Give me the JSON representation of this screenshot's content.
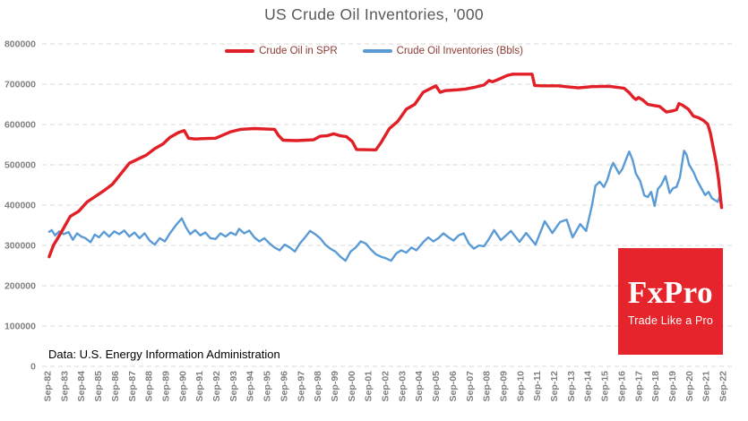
{
  "title": "US Crude Oil Inventories, '000",
  "source_note": "Data: U.S. Energy Information Administration",
  "logo": {
    "name": "FxPro",
    "tagline": "Trade Like a Pro",
    "bg_color": "#e6242c",
    "text_color": "#ffffff"
  },
  "legend": [
    {
      "label": "Crude Oil in SPR",
      "color": "#e11f26"
    },
    {
      "label": "Crude Oil Inventories (Bbls)",
      "color": "#5b9bd5"
    }
  ],
  "colors": {
    "grid": "#d9d9d9",
    "axis_label": "#7f7f7f",
    "title": "#595959",
    "legend_text": "#8e3a33",
    "spr_line": "#e11f26",
    "inventories_line": "#5b9bd5"
  },
  "chart_data": {
    "type": "line",
    "title": "US Crude Oil Inventories, '000",
    "xlabel": "",
    "ylabel": "",
    "grid": "horizontal-dashed",
    "legend_position": "top-center",
    "y_axis": {
      "range": [
        0,
        800000
      ],
      "tick_labels": [
        "0",
        "100000",
        "200000",
        "300000",
        "400000",
        "500000",
        "600000",
        "700000",
        "800000"
      ]
    },
    "x_axis": {
      "unit": "month-year, September of each year",
      "tick_labels": [
        "Sep-82",
        "Sep-83",
        "Sep-84",
        "Sep-85",
        "Sep-86",
        "Sep-87",
        "Sep-88",
        "Sep-89",
        "Sep-90",
        "Sep-91",
        "Sep-92",
        "Sep-93",
        "Sep-94",
        "Sep-95",
        "Sep-96",
        "Sep-97",
        "Sep-98",
        "Sep-99",
        "Sep-00",
        "Sep-01",
        "Sep-02",
        "Sep-03",
        "Sep-04",
        "Sep-05",
        "Sep-06",
        "Sep-07",
        "Sep-08",
        "Sep-09",
        "Sep-10",
        "Sep-11",
        "Sep-12",
        "Sep-13",
        "Sep-14",
        "Sep-15",
        "Sep-16",
        "Sep-17",
        "Sep-18",
        "Sep-19",
        "Sep-20",
        "Sep-21",
        "Sep-22"
      ],
      "first_tick_year": 1982.75,
      "last_tick_year": 2022.75
    },
    "series": [
      {
        "name": "Crude Oil Inventories (Bbls)",
        "color": "#5b9bd5",
        "points": [
          [
            1982.85,
            334000
          ],
          [
            1983.0,
            338000
          ],
          [
            1983.2,
            325000
          ],
          [
            1983.45,
            335000
          ],
          [
            1983.7,
            328000
          ],
          [
            1984.0,
            333000
          ],
          [
            1984.25,
            314000
          ],
          [
            1984.5,
            330000
          ],
          [
            1984.75,
            322000
          ],
          [
            1985.0,
            318000
          ],
          [
            1985.3,
            308000
          ],
          [
            1985.55,
            327000
          ],
          [
            1985.8,
            320000
          ],
          [
            1986.1,
            334000
          ],
          [
            1986.4,
            322000
          ],
          [
            1986.7,
            335000
          ],
          [
            1987.0,
            328000
          ],
          [
            1987.3,
            337000
          ],
          [
            1987.6,
            322000
          ],
          [
            1987.9,
            332000
          ],
          [
            1988.2,
            318000
          ],
          [
            1988.5,
            330000
          ],
          [
            1988.8,
            312000
          ],
          [
            1989.1,
            302000
          ],
          [
            1989.4,
            318000
          ],
          [
            1989.7,
            310000
          ],
          [
            1990.0,
            330000
          ],
          [
            1990.35,
            350000
          ],
          [
            1990.7,
            367000
          ],
          [
            1990.95,
            345000
          ],
          [
            1991.2,
            328000
          ],
          [
            1991.5,
            338000
          ],
          [
            1991.8,
            325000
          ],
          [
            1992.1,
            332000
          ],
          [
            1992.4,
            318000
          ],
          [
            1992.7,
            316000
          ],
          [
            1993.0,
            330000
          ],
          [
            1993.3,
            322000
          ],
          [
            1993.6,
            332000
          ],
          [
            1993.9,
            326000
          ],
          [
            1994.1,
            341000
          ],
          [
            1994.4,
            330000
          ],
          [
            1994.7,
            337000
          ],
          [
            1995.0,
            320000
          ],
          [
            1995.3,
            310000
          ],
          [
            1995.6,
            318000
          ],
          [
            1995.9,
            305000
          ],
          [
            1996.2,
            295000
          ],
          [
            1996.5,
            288000
          ],
          [
            1996.8,
            302000
          ],
          [
            1997.1,
            295000
          ],
          [
            1997.4,
            285000
          ],
          [
            1997.7,
            305000
          ],
          [
            1998.0,
            320000
          ],
          [
            1998.3,
            336000
          ],
          [
            1998.6,
            328000
          ],
          [
            1998.9,
            318000
          ],
          [
            1999.2,
            302000
          ],
          [
            1999.5,
            292000
          ],
          [
            1999.8,
            285000
          ],
          [
            2000.1,
            272000
          ],
          [
            2000.4,
            262000
          ],
          [
            2000.7,
            285000
          ],
          [
            2001.0,
            295000
          ],
          [
            2001.3,
            310000
          ],
          [
            2001.6,
            305000
          ],
          [
            2001.9,
            290000
          ],
          [
            2002.2,
            278000
          ],
          [
            2002.5,
            272000
          ],
          [
            2002.8,
            268000
          ],
          [
            2003.1,
            262000
          ],
          [
            2003.4,
            280000
          ],
          [
            2003.7,
            288000
          ],
          [
            2004.0,
            282000
          ],
          [
            2004.3,
            295000
          ],
          [
            2004.6,
            288000
          ],
          [
            2005.0,
            308000
          ],
          [
            2005.3,
            320000
          ],
          [
            2005.6,
            310000
          ],
          [
            2005.9,
            318000
          ],
          [
            2006.2,
            330000
          ],
          [
            2006.5,
            320000
          ],
          [
            2006.8,
            312000
          ],
          [
            2007.1,
            325000
          ],
          [
            2007.4,
            330000
          ],
          [
            2007.7,
            305000
          ],
          [
            2008.0,
            292000
          ],
          [
            2008.3,
            300000
          ],
          [
            2008.6,
            298000
          ],
          [
            2008.85,
            313000
          ],
          [
            2009.2,
            338000
          ],
          [
            2009.6,
            313000
          ],
          [
            2010.2,
            336000
          ],
          [
            2010.7,
            309000
          ],
          [
            2011.1,
            331000
          ],
          [
            2011.65,
            302000
          ],
          [
            2012.2,
            360000
          ],
          [
            2012.65,
            331000
          ],
          [
            2013.1,
            358000
          ],
          [
            2013.5,
            364000
          ],
          [
            2013.85,
            320000
          ],
          [
            2014.3,
            353000
          ],
          [
            2014.65,
            336000
          ],
          [
            2015.0,
            400000
          ],
          [
            2015.2,
            448000
          ],
          [
            2015.45,
            458000
          ],
          [
            2015.7,
            445000
          ],
          [
            2015.9,
            462000
          ],
          [
            2016.1,
            490000
          ],
          [
            2016.25,
            505000
          ],
          [
            2016.45,
            490000
          ],
          [
            2016.6,
            478000
          ],
          [
            2016.8,
            490000
          ],
          [
            2017.0,
            512000
          ],
          [
            2017.2,
            533000
          ],
          [
            2017.4,
            512000
          ],
          [
            2017.6,
            478000
          ],
          [
            2017.85,
            460000
          ],
          [
            2018.1,
            424000
          ],
          [
            2018.3,
            420000
          ],
          [
            2018.5,
            433000
          ],
          [
            2018.7,
            398000
          ],
          [
            2018.9,
            440000
          ],
          [
            2019.1,
            450000
          ],
          [
            2019.35,
            472000
          ],
          [
            2019.6,
            430000
          ],
          [
            2019.8,
            442000
          ],
          [
            2020.0,
            445000
          ],
          [
            2020.2,
            468000
          ],
          [
            2020.45,
            535000
          ],
          [
            2020.6,
            525000
          ],
          [
            2020.75,
            500000
          ],
          [
            2021.0,
            483000
          ],
          [
            2021.2,
            463000
          ],
          [
            2021.5,
            440000
          ],
          [
            2021.7,
            425000
          ],
          [
            2021.9,
            433000
          ],
          [
            2022.1,
            417000
          ],
          [
            2022.3,
            412000
          ],
          [
            2022.45,
            408000
          ],
          [
            2022.55,
            420000
          ],
          [
            2022.62,
            428000
          ]
        ]
      },
      {
        "name": "Crude Oil in SPR",
        "color": "#e11f26",
        "points": [
          [
            1982.85,
            272000
          ],
          [
            1983.1,
            300000
          ],
          [
            1983.6,
            335000
          ],
          [
            1984.1,
            372000
          ],
          [
            1984.6,
            385000
          ],
          [
            1985.1,
            408000
          ],
          [
            1985.6,
            422000
          ],
          [
            1986.1,
            436000
          ],
          [
            1986.6,
            452000
          ],
          [
            1987.1,
            478000
          ],
          [
            1987.6,
            504000
          ],
          [
            1988.1,
            514000
          ],
          [
            1988.6,
            524000
          ],
          [
            1989.1,
            540000
          ],
          [
            1989.6,
            552000
          ],
          [
            1990.0,
            568000
          ],
          [
            1990.5,
            580000
          ],
          [
            1990.85,
            585000
          ],
          [
            1991.1,
            566000
          ],
          [
            1991.5,
            564000
          ],
          [
            1992.0,
            565000
          ],
          [
            1992.7,
            566000
          ],
          [
            1993.6,
            582000
          ],
          [
            1994.2,
            588000
          ],
          [
            1995.0,
            590000
          ],
          [
            1996.2,
            588000
          ],
          [
            1996.45,
            572000
          ],
          [
            1996.7,
            561000
          ],
          [
            1997.5,
            560000
          ],
          [
            1998.5,
            562000
          ],
          [
            1998.9,
            571000
          ],
          [
            1999.3,
            572000
          ],
          [
            1999.7,
            577000
          ],
          [
            2000.1,
            572000
          ],
          [
            2000.45,
            570000
          ],
          [
            2000.8,
            558000
          ],
          [
            2001.05,
            538000
          ],
          [
            2002.2,
            537000
          ],
          [
            2002.5,
            555000
          ],
          [
            2003.0,
            590000
          ],
          [
            2003.5,
            608000
          ],
          [
            2004.0,
            638000
          ],
          [
            2004.5,
            650000
          ],
          [
            2005.0,
            680000
          ],
          [
            2005.75,
            696000
          ],
          [
            2006.0,
            680000
          ],
          [
            2006.3,
            684000
          ],
          [
            2007.0,
            686000
          ],
          [
            2007.5,
            688000
          ],
          [
            2008.0,
            692000
          ],
          [
            2008.6,
            698000
          ],
          [
            2008.9,
            709000
          ],
          [
            2009.1,
            706000
          ],
          [
            2009.4,
            711000
          ],
          [
            2010.0,
            722000
          ],
          [
            2010.3,
            725000
          ],
          [
            2011.45,
            725000
          ],
          [
            2011.6,
            697000
          ],
          [
            2012.0,
            696000
          ],
          [
            2013.0,
            696000
          ],
          [
            2013.9,
            692000
          ],
          [
            2014.2,
            691000
          ],
          [
            2015.0,
            694000
          ],
          [
            2016.0,
            695000
          ],
          [
            2016.9,
            690000
          ],
          [
            2017.2,
            679000
          ],
          [
            2017.45,
            667000
          ],
          [
            2017.6,
            662000
          ],
          [
            2017.75,
            667000
          ],
          [
            2018.0,
            661000
          ],
          [
            2018.3,
            650000
          ],
          [
            2018.7,
            647000
          ],
          [
            2019.0,
            645000
          ],
          [
            2019.4,
            631000
          ],
          [
            2019.8,
            634000
          ],
          [
            2020.0,
            637000
          ],
          [
            2020.15,
            652000
          ],
          [
            2020.35,
            648000
          ],
          [
            2020.7,
            638000
          ],
          [
            2021.0,
            621000
          ],
          [
            2021.3,
            617000
          ],
          [
            2021.6,
            610000
          ],
          [
            2021.85,
            601000
          ],
          [
            2022.0,
            580000
          ],
          [
            2022.2,
            538000
          ],
          [
            2022.35,
            505000
          ],
          [
            2022.5,
            462000
          ],
          [
            2022.6,
            420000
          ],
          [
            2022.67,
            394000
          ]
        ]
      }
    ]
  }
}
